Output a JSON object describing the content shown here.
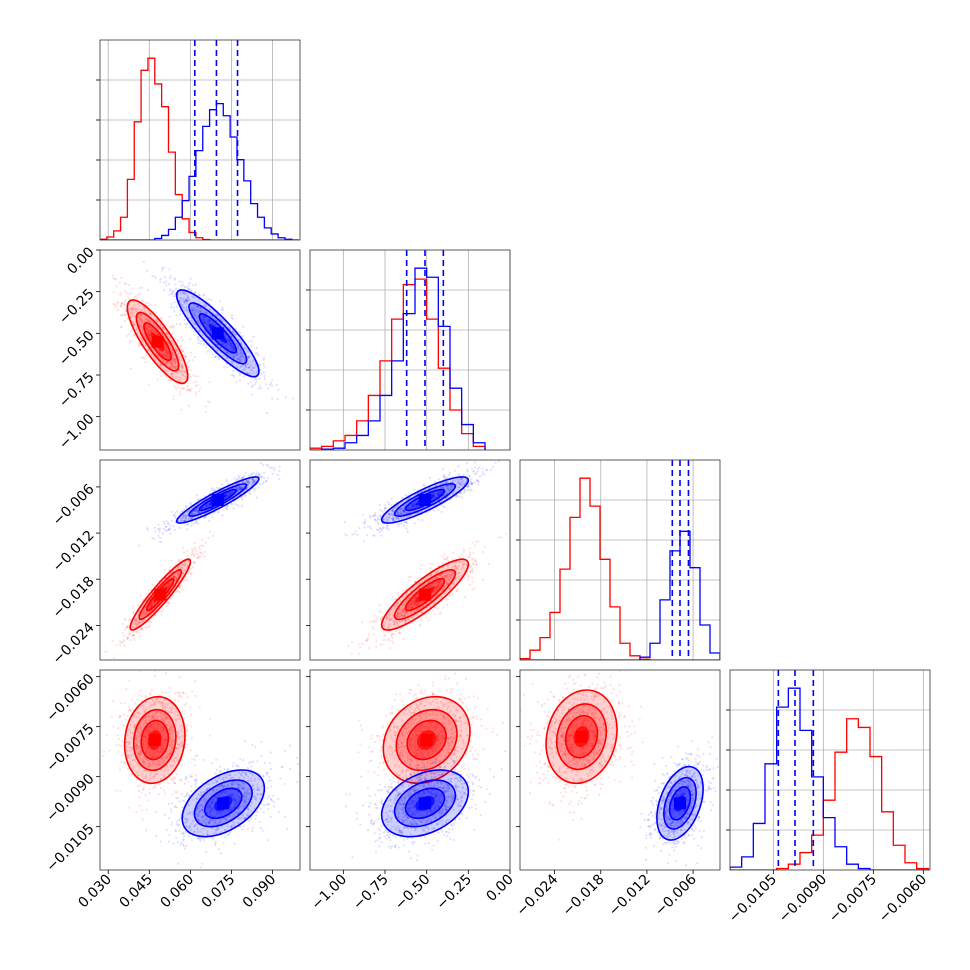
{
  "chart_data": {
    "type": "corner",
    "grid": true,
    "series": [
      {
        "color": "#ff0000"
      },
      {
        "color": "#0000ff"
      }
    ],
    "params": [
      {
        "range": [
          0.027,
          0.1
        ],
        "ticks": [
          "0.030",
          "0.045",
          "0.060",
          "0.075",
          "0.090"
        ]
      },
      {
        "range": [
          -1.2,
          0.0
        ],
        "ticks": [
          "−1.00",
          "−0.75",
          "−0.50",
          "−0.25",
          "0.00"
        ]
      },
      {
        "range": [
          -0.0285,
          -0.0025
        ],
        "ticks": [
          "−0.024",
          "−0.018",
          "−0.012",
          "−0.006"
        ]
      },
      {
        "range": [
          -0.0118,
          -0.0058
        ],
        "ticks": [
          "−0.0105",
          "−0.0090",
          "−0.0075",
          "−0.0060"
        ]
      }
    ],
    "quantiles": [
      [
        0.0616,
        0.0695,
        0.0772
      ],
      [
        -0.62,
        -0.51,
        -0.4
      ],
      [
        -0.0087,
        -0.0077,
        -0.0066
      ],
      [
        -0.01035,
        -0.00985,
        -0.0093
      ]
    ],
    "histograms": [
      {
        "bin_edges": [
          0.027,
          0.0295,
          0.032,
          0.0345,
          0.037,
          0.0395,
          0.042,
          0.0445,
          0.047,
          0.0495,
          0.052,
          0.0545,
          0.057,
          0.0595,
          0.062,
          0.0645,
          0.067,
          0.0695,
          0.072,
          0.0745,
          0.077,
          0.0795,
          0.082,
          0.0845,
          0.087,
          0.0895,
          0.092,
          0.0945,
          0.097,
          0.0995
        ],
        "red": [
          0.5,
          2,
          6,
          15,
          40,
          78,
          112,
          120,
          103,
          88,
          58,
          30,
          14,
          5,
          1.5,
          0.3,
          0,
          0,
          0,
          0,
          0,
          0,
          0,
          0,
          0,
          0,
          0,
          0,
          0
        ],
        "blue": [
          0,
          0,
          0,
          0,
          0,
          0,
          0,
          0,
          1,
          3,
          7,
          15,
          26,
          42,
          59,
          75,
          86,
          90,
          82,
          68,
          53,
          39,
          24,
          15,
          8,
          4,
          1.5,
          0.5,
          0
        ]
      },
      {
        "bin_edges": [
          -1.2,
          -1.13,
          -1.06,
          -0.99,
          -0.92,
          -0.85,
          -0.78,
          -0.71,
          -0.64,
          -0.57,
          -0.5,
          -0.43,
          -0.36,
          -0.29,
          -0.22,
          -0.15
        ],
        "red": [
          1,
          2,
          5,
          8,
          16,
          30,
          49,
          72,
          91,
          94,
          72,
          45,
          22,
          9,
          2
        ],
        "blue": [
          0,
          0.5,
          1,
          4,
          8,
          16,
          30,
          49,
          75,
          100,
          95,
          68,
          34,
          14,
          4
        ]
      },
      {
        "bin_edges": [
          -0.0285,
          -0.0272,
          -0.0259,
          -0.0246,
          -0.0233,
          -0.022,
          -0.0207,
          -0.0194,
          -0.0181,
          -0.0168,
          -0.0155,
          -0.0142,
          -0.0129,
          -0.0116,
          -0.0103,
          -0.009,
          -0.0077,
          -0.0064,
          -0.0051,
          -0.0038,
          -0.0025
        ],
        "red": [
          1,
          7,
          16,
          34,
          65,
          102,
          130,
          110,
          72,
          38,
          12,
          3,
          0.5,
          0,
          0,
          0,
          0,
          0,
          0,
          0
        ],
        "blue": [
          0,
          0,
          0,
          0,
          0,
          0,
          0,
          0,
          0,
          0,
          0,
          0,
          2,
          12,
          43,
          78,
          92,
          66,
          25,
          5
        ]
      },
      {
        "bin_edges": [
          -0.0118,
          -0.01145,
          -0.0111,
          -0.01075,
          -0.0104,
          -0.01005,
          -0.0097,
          -0.00935,
          -0.009,
          -0.00865,
          -0.0083,
          -0.00795,
          -0.0076,
          -0.00725,
          -0.0069,
          -0.00655,
          -0.0062,
          -0.00585
        ],
        "red": [
          0,
          0,
          0,
          0,
          1,
          4,
          12,
          24,
          48,
          81,
          104,
          98,
          78,
          40,
          17,
          5,
          1
        ],
        "blue": [
          2,
          9,
          32,
          73,
          112,
          125,
          96,
          64,
          36,
          16,
          4,
          1,
          0,
          0,
          0,
          0,
          0
        ]
      }
    ],
    "joint": [
      {
        "pair": [
          1,
          0
        ],
        "red": {
          "mean": [
            0.048,
            -0.55
          ],
          "sd": [
            0.0055,
            0.125
          ],
          "rho": -0.82
        },
        "blue": {
          "mean": [
            0.07,
            -0.5
          ],
          "sd": [
            0.0075,
            0.13
          ],
          "rho": -0.88
        }
      },
      {
        "pair": [
          2,
          0
        ],
        "red": {
          "mean": [
            0.049,
            -0.02
          ],
          "sd": [
            0.0055,
            0.0023
          ],
          "rho": 0.93
        },
        "blue": {
          "mean": [
            0.07,
            -0.0077
          ],
          "sd": [
            0.0075,
            0.0015
          ],
          "rho": 0.92
        }
      },
      {
        "pair": [
          2,
          1
        ],
        "red": {
          "mean": [
            -0.51,
            -0.02
          ],
          "sd": [
            0.13,
            0.0023
          ],
          "rho": 0.86
        },
        "blue": {
          "mean": [
            -0.51,
            -0.0077
          ],
          "sd": [
            0.13,
            0.0015
          ],
          "rho": 0.86
        }
      },
      {
        "pair": [
          3,
          0
        ],
        "red": {
          "mean": [
            0.047,
            -0.0079
          ],
          "sd": [
            0.0055,
            0.00065
          ],
          "rho": 0.1
        },
        "blue": {
          "mean": [
            0.072,
            -0.0098
          ],
          "sd": [
            0.0075,
            0.0005
          ],
          "rho": 0.45
        }
      },
      {
        "pair": [
          3,
          1
        ],
        "red": {
          "mean": [
            -0.5,
            -0.0079
          ],
          "sd": [
            0.13,
            0.00065
          ],
          "rho": 0.2
        },
        "blue": {
          "mean": [
            -0.51,
            -0.0098
          ],
          "sd": [
            0.13,
            0.0005
          ],
          "rho": 0.35
        }
      },
      {
        "pair": [
          3,
          2
        ],
        "red": {
          "mean": [
            -0.0205,
            -0.0078
          ],
          "sd": [
            0.0023,
            0.0007
          ],
          "rho": 0.15
        },
        "blue": {
          "mean": [
            -0.0077,
            -0.0098
          ],
          "sd": [
            0.0015,
            0.00055
          ],
          "rho": 0.4
        }
      }
    ]
  }
}
